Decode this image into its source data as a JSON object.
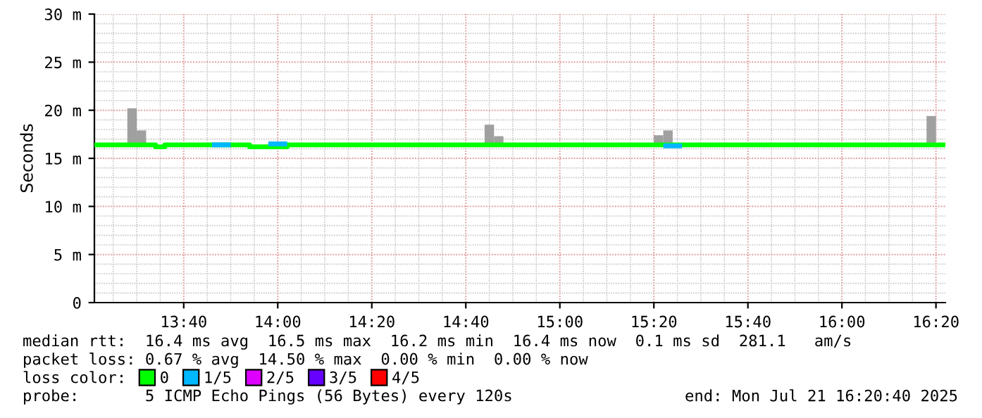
{
  "chart_data": {
    "type": "step",
    "ylabel": "Seconds",
    "legend_title": "loss color:",
    "legend": "bottom",
    "grid": true,
    "line_style": "solid",
    "marker": "none",
    "xlim": [
      "2025-07-21T13:21",
      "2025-07-21T16:22"
    ],
    "xticks": [
      {
        "value": "2025-07-21T13:40",
        "label": "13:40"
      },
      {
        "value": "2025-07-21T14:00",
        "label": "14:00"
      },
      {
        "value": "2025-07-21T14:20",
        "label": "14:20"
      },
      {
        "value": "2025-07-21T14:40",
        "label": "14:40"
      },
      {
        "value": "2025-07-21T15:00",
        "label": "15:00"
      },
      {
        "value": "2025-07-21T15:20",
        "label": "15:20"
      },
      {
        "value": "2025-07-21T15:40",
        "label": "15:40"
      },
      {
        "value": "2025-07-21T16:00",
        "label": "16:00"
      },
      {
        "value": "2025-07-21T16:20",
        "label": "16:20"
      }
    ],
    "ylim": [
      0,
      30
    ],
    "yticks": [
      {
        "value": 0,
        "label": "0"
      },
      {
        "value": 5,
        "label": "5 m"
      },
      {
        "value": 10,
        "label": "10 m"
      },
      {
        "value": 15,
        "label": "15 m"
      },
      {
        "value": 20,
        "label": "20 m"
      },
      {
        "value": 25,
        "label": "25 m"
      },
      {
        "value": 30,
        "label": "30 m"
      }
    ],
    "series": [
      {
        "type": "bar",
        "color": "#a0a0a0",
        "x": [
          "2025-07-21T13:28",
          "2025-07-21T13:30",
          "2025-07-21T14:44",
          "2025-07-21T14:46",
          "2025-07-21T15:20",
          "2025-07-21T15:22",
          "2025-07-21T16:18"
        ],
        "base": [
          16.4,
          16.4,
          16.4,
          16.4,
          16.4,
          16.4,
          16.4
        ],
        "values": [
          3.8,
          1.5,
          2.1,
          0.9,
          1.0,
          1.5,
          3.0
        ]
      },
      {
        "name": "0",
        "color": "#00ff00",
        "x": [
          "2025-07-21T13:21",
          "2025-07-21T13:34",
          "2025-07-21T13:36",
          "2025-07-21T13:50",
          "2025-07-21T13:54",
          "2025-07-21T14:02",
          "2025-07-21T15:26",
          "2025-07-21T16:22"
        ],
        "values": [
          16.4,
          16.2,
          16.4,
          16.4,
          16.2,
          16.4,
          16.4,
          16.4
        ]
      },
      {
        "name": "1/5",
        "color": "#00b8ff",
        "x": [
          "2025-07-21T13:46",
          "2025-07-21T13:50"
        ],
        "values": [
          16.4,
          16.4
        ]
      },
      {
        "color": "#00b8ff",
        "x": [
          "2025-07-21T13:58",
          "2025-07-21T14:02"
        ],
        "values": [
          16.5,
          16.5
        ]
      },
      {
        "color": "#00b8ff",
        "x": [
          "2025-07-21T15:22",
          "2025-07-21T15:26"
        ],
        "values": [
          16.3,
          16.3
        ]
      },
      {
        "name": "2/5",
        "color": "#dd00ff"
      },
      {
        "name": "3/5",
        "color": "#6600ff"
      },
      {
        "name": "4/5",
        "color": "#ff0000"
      }
    ],
    "annotations": [
      "median rtt:  16.4 ms avg  16.5 ms max  16.2 ms min  16.4 ms now  0.1 ms sd  281.1   am/s",
      "packet loss: 0.67 % avg  14.50 % max  0.00 % min  0.00 % now",
      "probe:       5 ICMP Echo Pings (56 Bytes) every 120s",
      "end: Mon Jul 21 16:20:40 2025"
    ]
  }
}
